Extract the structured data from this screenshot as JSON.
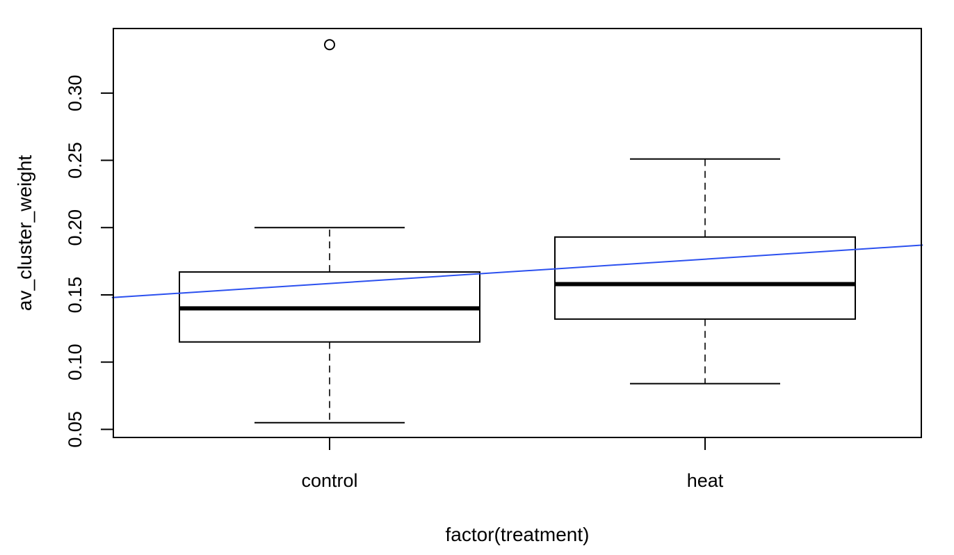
{
  "chart_data": {
    "type": "boxplot",
    "xlabel": "factor(treatment)",
    "ylabel": "av_cluster_weight",
    "categories": [
      "control",
      "heat"
    ],
    "yticks": [
      0.05,
      0.1,
      0.15,
      0.2,
      0.25,
      0.3
    ],
    "ytick_labels": [
      "0.05",
      "0.10",
      "0.15",
      "0.20",
      "0.25",
      "0.30"
    ],
    "ylim": [
      0.044,
      0.348
    ],
    "boxes": [
      {
        "name": "control",
        "whisker_low": 0.055,
        "q1": 0.115,
        "median": 0.14,
        "q3": 0.167,
        "whisker_high": 0.2,
        "outliers": [
          0.336
        ]
      },
      {
        "name": "heat",
        "whisker_low": 0.084,
        "q1": 0.132,
        "median": 0.158,
        "q3": 0.193,
        "whisker_high": 0.251,
        "outliers": []
      }
    ],
    "trend_line": {
      "color": "#2b50ef",
      "x": [
        0.42,
        2.58
      ],
      "y": [
        0.148,
        0.187
      ]
    },
    "grid": false,
    "legend": "none"
  }
}
